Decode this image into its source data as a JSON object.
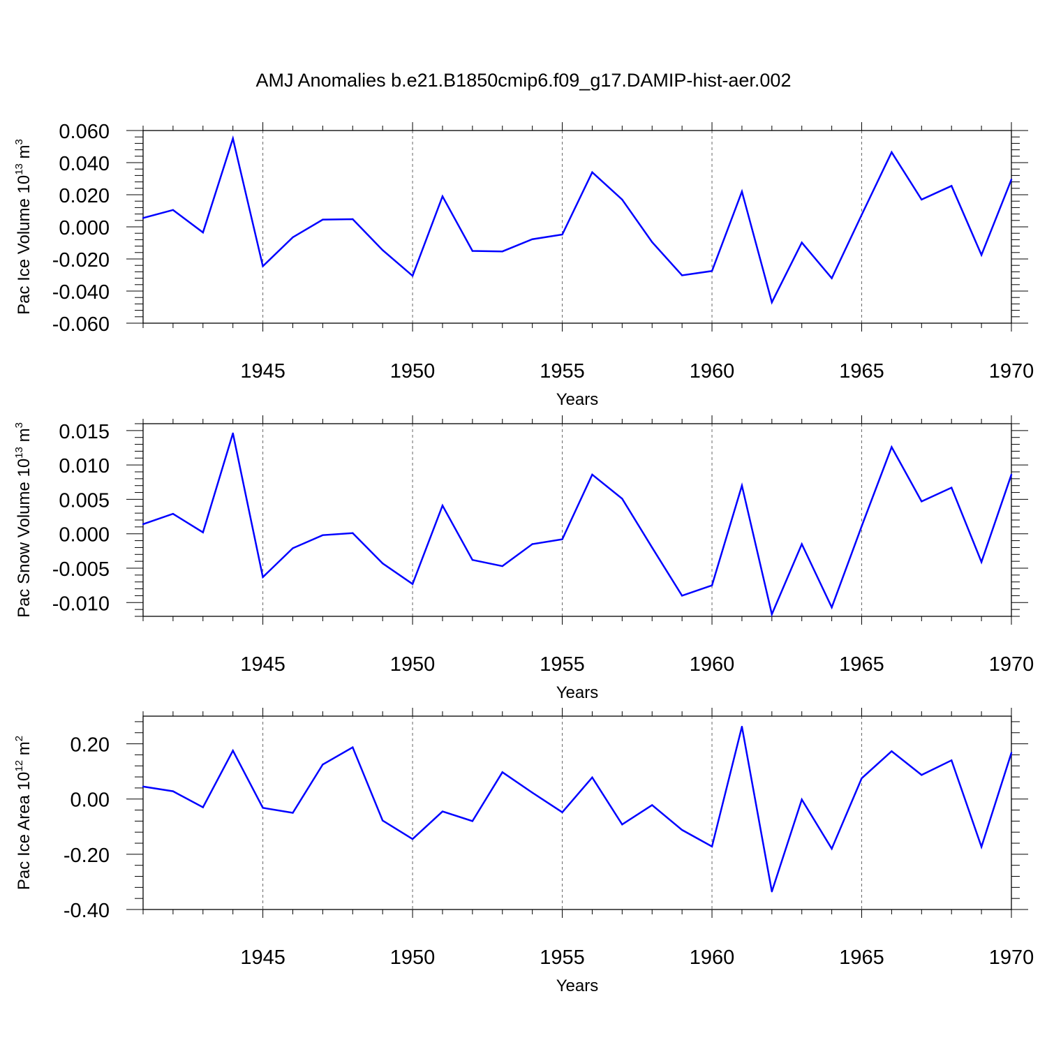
{
  "title": "AMJ Anomalies b.e21.B1850cmip6.f09_g17.DAMIP-hist-aer.002",
  "line_color": "#0000ff",
  "chart_data": [
    {
      "type": "line",
      "ylabel": "Pac Ice Volume 10",
      "ylabel_exp": "13",
      "ylabel_unit": " m",
      "ylabel_unit_exp": "3",
      "xlabel": "Years",
      "xlim": [
        1941,
        1970
      ],
      "ylim": [
        -0.06,
        0.06
      ],
      "xticks": [
        1945,
        1950,
        1955,
        1960,
        1965,
        1970
      ],
      "xtick_labels": [
        "1945",
        "1950",
        "1955",
        "1960",
        "1965",
        "1970"
      ],
      "yticks": [
        -0.06,
        -0.04,
        -0.02,
        0.0,
        0.02,
        0.04,
        0.06
      ],
      "ytick_labels": [
        "-0.060",
        "-0.040",
        "-0.020",
        "0.000",
        "0.020",
        "0.040",
        "0.060"
      ],
      "x": [
        1941,
        1942,
        1943,
        1944,
        1945,
        1946,
        1947,
        1948,
        1949,
        1950,
        1951,
        1952,
        1953,
        1954,
        1955,
        1956,
        1957,
        1958,
        1959,
        1960,
        1961,
        1962,
        1963,
        1964,
        1965,
        1966,
        1967,
        1968,
        1969,
        1970
      ],
      "values": [
        0.0055,
        0.0105,
        -0.0035,
        0.055,
        -0.0245,
        -0.0065,
        0.0045,
        0.0048,
        -0.0145,
        -0.0305,
        0.019,
        -0.015,
        -0.0153,
        -0.0077,
        -0.0048,
        0.034,
        0.017,
        -0.0095,
        -0.0302,
        -0.0275,
        0.022,
        -0.047,
        -0.0098,
        -0.032,
        0.0075,
        0.0465,
        0.017,
        0.0255,
        -0.0175,
        0.0295
      ]
    },
    {
      "type": "line",
      "ylabel": "Pac Snow Volume 10",
      "ylabel_exp": "13",
      "ylabel_unit": " m",
      "ylabel_unit_exp": "3",
      "xlabel": "Years",
      "xlim": [
        1941,
        1970
      ],
      "ylim": [
        -0.012,
        0.016
      ],
      "xticks": [
        1945,
        1950,
        1955,
        1960,
        1965,
        1970
      ],
      "xtick_labels": [
        "1945",
        "1950",
        "1955",
        "1960",
        "1965",
        "1970"
      ],
      "yticks": [
        -0.01,
        -0.005,
        0.0,
        0.005,
        0.01,
        0.015
      ],
      "ytick_labels": [
        "-0.010",
        "-0.005",
        "0.000",
        "0.005",
        "0.010",
        "0.015"
      ],
      "x": [
        1941,
        1942,
        1943,
        1944,
        1945,
        1946,
        1947,
        1948,
        1949,
        1950,
        1951,
        1952,
        1953,
        1954,
        1955,
        1956,
        1957,
        1958,
        1959,
        1960,
        1961,
        1962,
        1963,
        1964,
        1965,
        1966,
        1967,
        1968,
        1969,
        1970
      ],
      "values": [
        0.0014,
        0.0029,
        0.0002,
        0.0146,
        -0.0063,
        -0.0021,
        -0.0002,
        0.0001,
        -0.0043,
        -0.0073,
        0.0041,
        -0.0038,
        -0.0047,
        -0.0015,
        -0.0008,
        0.0086,
        0.0051,
        -0.002,
        -0.009,
        -0.0075,
        0.007,
        -0.0117,
        -0.0015,
        -0.0107,
        0.0011,
        0.0126,
        0.0047,
        0.0067,
        -0.0041,
        0.0086
      ]
    },
    {
      "type": "line",
      "ylabel": "Pac Ice Area 10",
      "ylabel_exp": "12",
      "ylabel_unit": " m",
      "ylabel_unit_exp": "2",
      "xlabel": "Years",
      "xlim": [
        1941,
        1970
      ],
      "ylim": [
        -0.4,
        0.3
      ],
      "xticks": [
        1945,
        1950,
        1955,
        1960,
        1965,
        1970
      ],
      "xtick_labels": [
        "1945",
        "1950",
        "1955",
        "1960",
        "1965",
        "1970"
      ],
      "yticks": [
        -0.4,
        -0.2,
        0.0,
        0.2
      ],
      "ytick_labels": [
        "-0.40",
        "-0.20",
        "0.00",
        "0.20"
      ],
      "x": [
        1941,
        1942,
        1943,
        1944,
        1945,
        1946,
        1947,
        1948,
        1949,
        1950,
        1951,
        1952,
        1953,
        1954,
        1955,
        1956,
        1957,
        1958,
        1959,
        1960,
        1961,
        1962,
        1963,
        1964,
        1965,
        1966,
        1967,
        1968,
        1969,
        1970
      ],
      "values": [
        0.045,
        0.028,
        -0.03,
        0.175,
        -0.032,
        -0.05,
        0.125,
        0.187,
        -0.078,
        -0.145,
        -0.045,
        -0.08,
        0.097,
        0.023,
        -0.048,
        0.078,
        -0.092,
        -0.022,
        -0.112,
        -0.172,
        0.262,
        -0.335,
        -0.002,
        -0.18,
        0.075,
        0.173,
        0.087,
        0.14,
        -0.173,
        0.167
      ]
    }
  ]
}
